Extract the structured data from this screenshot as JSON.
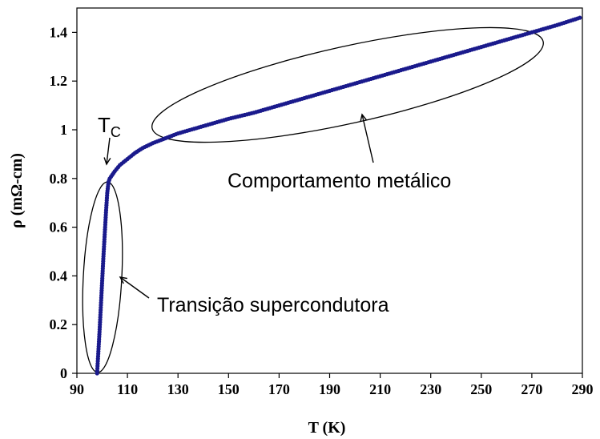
{
  "chart_data": {
    "type": "scatter",
    "xlabel": "T (K)",
    "ylabel": "ρ (mΩ-cm)",
    "xlim": [
      90,
      290
    ],
    "ylim": [
      0,
      1.5
    ],
    "xticks": [
      90,
      110,
      130,
      150,
      170,
      190,
      210,
      230,
      250,
      270,
      290
    ],
    "yticks": [
      0,
      0.2,
      0.4,
      0.6,
      0.8,
      1,
      1.2,
      1.4
    ],
    "ytick_labels": [
      "0",
      "0.2",
      "0.4",
      "0.6",
      "0.8",
      "1",
      "1.2",
      "1.4"
    ],
    "grid": false,
    "marker_color": "#1a1a8c",
    "series": [
      {
        "x": [
          98.0,
          98.5,
          99.0,
          99.5,
          100.0,
          100.5,
          101.0,
          101.5,
          102.0,
          102.5,
          103.0,
          104.0,
          105.0,
          107.0,
          110.0,
          113.0,
          116.0,
          120.0,
          125.0,
          130.0,
          140.0,
          150.0,
          160.0,
          170.0,
          180.0,
          190.0,
          200.0,
          210.0,
          220.0,
          230.0,
          240.0,
          250.0,
          260.0,
          270.0,
          280.0,
          289.0
        ],
        "y": [
          0.0,
          0.09,
          0.18,
          0.28,
          0.38,
          0.48,
          0.57,
          0.66,
          0.74,
          0.785,
          0.8,
          0.815,
          0.83,
          0.855,
          0.88,
          0.905,
          0.925,
          0.945,
          0.965,
          0.985,
          1.015,
          1.045,
          1.07,
          1.1,
          1.13,
          1.16,
          1.19,
          1.22,
          1.25,
          1.28,
          1.31,
          1.34,
          1.37,
          1.4,
          1.43,
          1.46
        ]
      }
    ],
    "annotations": [
      {
        "text": "Comportamento metálico",
        "target": [
          190,
          1.05
        ]
      },
      {
        "text": "Transição supercondutora",
        "target": [
          101,
          0.38
        ]
      },
      {
        "text": "T",
        "subscript": "C",
        "target": [
          101,
          0.82
        ]
      }
    ]
  }
}
